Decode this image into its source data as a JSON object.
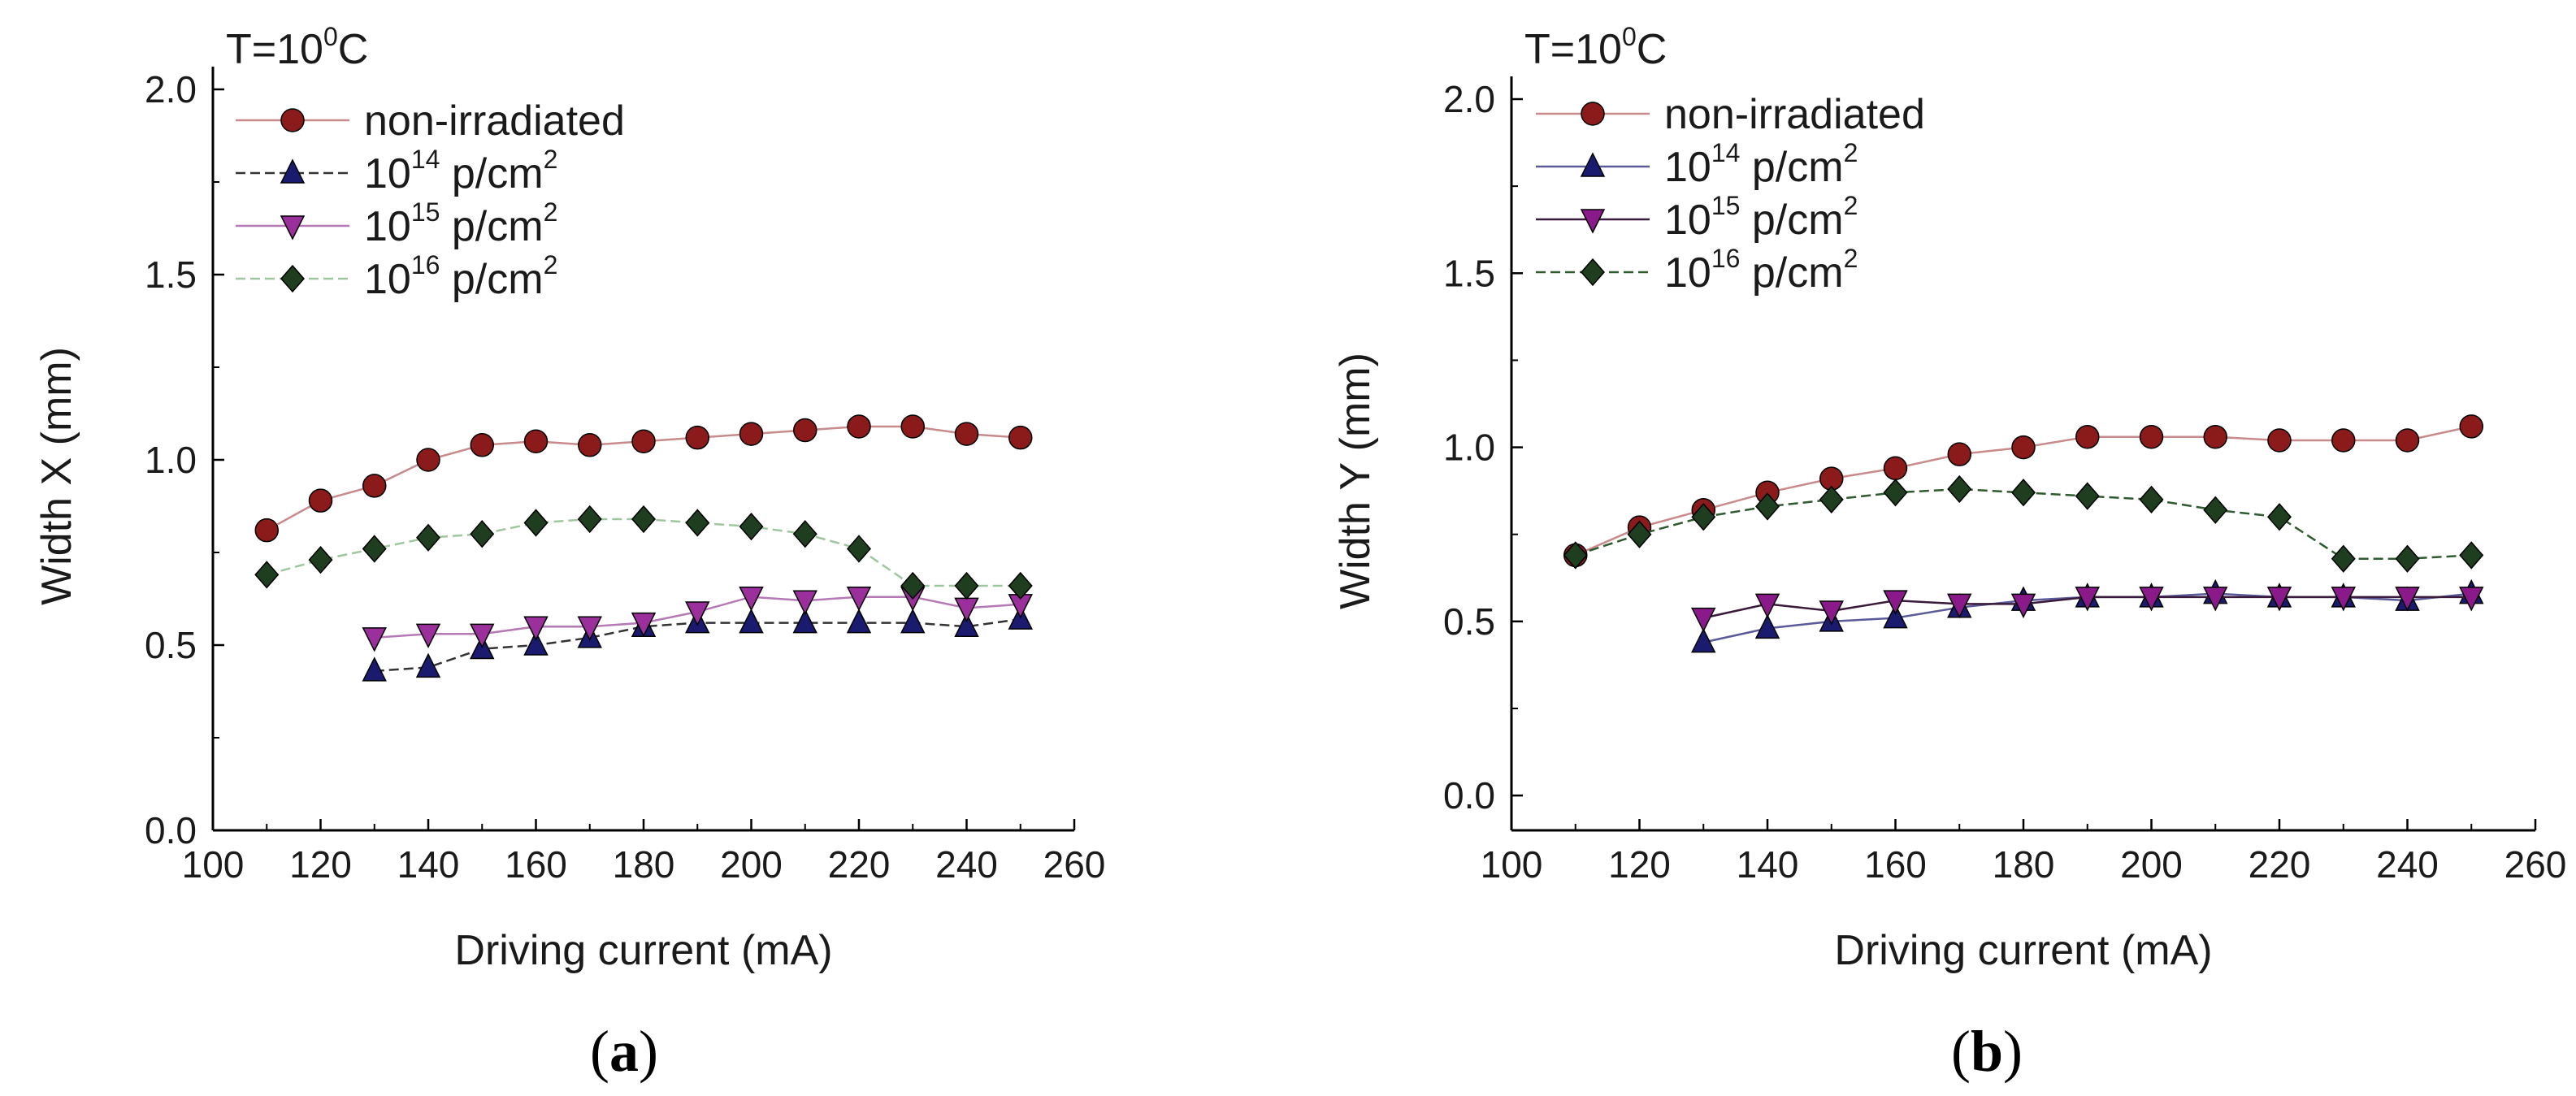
{
  "figure": {
    "panels": [
      {
        "id": "a",
        "caption_open": "(",
        "caption_letter": "a",
        "caption_close": ")",
        "temperature_label": "T=10",
        "temperature_sup": "0",
        "temperature_unit": "C"
      },
      {
        "id": "b",
        "caption_open": "(",
        "caption_letter": "b",
        "caption_close": ")",
        "temperature_label": "T=10",
        "temperature_sup": "0",
        "temperature_unit": "C"
      }
    ]
  },
  "chart_data": [
    {
      "type": "line",
      "title": "",
      "xlabel": "Driving current (mA)",
      "ylabel": "Width X (mm)",
      "xlim": [
        100,
        260
      ],
      "ylim": [
        0.0,
        2.0
      ],
      "xticks": [
        100,
        120,
        140,
        160,
        180,
        200,
        220,
        240,
        260
      ],
      "yticks": [
        "0.0",
        "0.5",
        "1.0",
        "1.5",
        "2.0"
      ],
      "legend_position": "top-left",
      "series": [
        {
          "name": "non-irradiated",
          "legend_base": "non-irradiated",
          "legend_sup": "",
          "legend_tail": "",
          "marker": "circle",
          "color": "#8b1a1a",
          "line_color": "#c88a8a",
          "dashed": false,
          "x": [
            110,
            120,
            130,
            140,
            150,
            160,
            170,
            180,
            190,
            200,
            210,
            220,
            230,
            240,
            250
          ],
          "y": [
            0.81,
            0.89,
            0.93,
            1.0,
            1.04,
            1.05,
            1.04,
            1.05,
            1.06,
            1.07,
            1.08,
            1.09,
            1.09,
            1.07,
            1.06
          ]
        },
        {
          "name": "10^14 p/cm^2",
          "legend_base": "10",
          "legend_sup": "14",
          "legend_tail": " p/cm",
          "legend_tail_sup": "2",
          "marker": "triangle-up",
          "color": "#1a1a6e",
          "line_color": "#333333",
          "dashed": true,
          "x": [
            130,
            140,
            150,
            160,
            170,
            180,
            190,
            200,
            210,
            220,
            230,
            240,
            250
          ],
          "y": [
            0.43,
            0.44,
            0.49,
            0.5,
            0.52,
            0.55,
            0.56,
            0.56,
            0.56,
            0.56,
            0.56,
            0.55,
            0.57
          ]
        },
        {
          "name": "10^15 p/cm^2",
          "legend_base": "10",
          "legend_sup": "15",
          "legend_tail": " p/cm",
          "legend_tail_sup": "2",
          "marker": "triangle-down",
          "color": "#9b2f9b",
          "line_color": "#b57ab5",
          "dashed": false,
          "x": [
            130,
            140,
            150,
            160,
            170,
            180,
            190,
            200,
            210,
            220,
            230,
            240,
            250
          ],
          "y": [
            0.52,
            0.53,
            0.53,
            0.55,
            0.55,
            0.56,
            0.59,
            0.63,
            0.62,
            0.63,
            0.63,
            0.6,
            0.61
          ]
        },
        {
          "name": "10^16 p/cm^2",
          "legend_base": "10",
          "legend_sup": "16",
          "legend_tail": " p/cm",
          "legend_tail_sup": "2",
          "marker": "diamond",
          "color": "#1f3d1f",
          "line_color": "#9fc79f",
          "dashed": true,
          "x": [
            110,
            120,
            130,
            140,
            150,
            160,
            170,
            180,
            190,
            200,
            210,
            220,
            230,
            240,
            250
          ],
          "y": [
            0.69,
            0.73,
            0.76,
            0.79,
            0.8,
            0.83,
            0.84,
            0.84,
            0.83,
            0.82,
            0.8,
            0.76,
            0.66,
            0.66,
            0.66
          ]
        }
      ]
    },
    {
      "type": "line",
      "title": "",
      "xlabel": "Driving current (mA)",
      "ylabel": "Width Y (mm)",
      "xlim": [
        100,
        260
      ],
      "ylim": [
        -0.1,
        2.0
      ],
      "xticks": [
        100,
        120,
        140,
        160,
        180,
        200,
        220,
        240,
        260
      ],
      "yticks": [
        "0.0",
        "0.5",
        "1.0",
        "1.5",
        "2.0"
      ],
      "legend_position": "top-left",
      "series": [
        {
          "name": "non-irradiated",
          "legend_base": "non-irradiated",
          "legend_sup": "",
          "legend_tail": "",
          "marker": "circle",
          "color": "#8b1a1a",
          "line_color": "#c88a8a",
          "dashed": false,
          "x": [
            110,
            120,
            130,
            140,
            150,
            160,
            170,
            180,
            190,
            200,
            210,
            220,
            230,
            240,
            250
          ],
          "y": [
            0.69,
            0.77,
            0.82,
            0.87,
            0.91,
            0.94,
            0.98,
            1.0,
            1.03,
            1.03,
            1.03,
            1.02,
            1.02,
            1.02,
            1.06
          ]
        },
        {
          "name": "10^14 p/cm^2",
          "legend_base": "10",
          "legend_sup": "14",
          "legend_tail": " p/cm",
          "legend_tail_sup": "2",
          "marker": "triangle-up",
          "color": "#1a1a6e",
          "line_color": "#5a5a9a",
          "dashed": false,
          "x": [
            130,
            140,
            150,
            160,
            170,
            180,
            190,
            200,
            210,
            220,
            230,
            240,
            250
          ],
          "y": [
            0.44,
            0.48,
            0.5,
            0.51,
            0.54,
            0.56,
            0.57,
            0.57,
            0.58,
            0.57,
            0.57,
            0.56,
            0.58
          ]
        },
        {
          "name": "10^15 p/cm^2",
          "legend_base": "10",
          "legend_sup": "15",
          "legend_tail": " p/cm",
          "legend_tail_sup": "2",
          "marker": "triangle-down",
          "color": "#8a1a8a",
          "line_color": "#3a1a3a",
          "dashed": false,
          "x": [
            130,
            140,
            150,
            160,
            170,
            180,
            190,
            200,
            210,
            220,
            230,
            240,
            250
          ],
          "y": [
            0.51,
            0.55,
            0.53,
            0.56,
            0.55,
            0.55,
            0.57,
            0.57,
            0.57,
            0.57,
            0.57,
            0.57,
            0.57
          ]
        },
        {
          "name": "10^16 p/cm^2",
          "legend_base": "10",
          "legend_sup": "16",
          "legend_tail": " p/cm",
          "legend_tail_sup": "2",
          "marker": "diamond",
          "color": "#1f3d1f",
          "line_color": "#2f5a2f",
          "dashed": true,
          "x": [
            110,
            120,
            130,
            140,
            150,
            160,
            170,
            180,
            190,
            200,
            210,
            220,
            230,
            240,
            250
          ],
          "y": [
            0.69,
            0.75,
            0.8,
            0.83,
            0.85,
            0.87,
            0.88,
            0.87,
            0.86,
            0.85,
            0.82,
            0.8,
            0.68,
            0.68,
            0.69
          ]
        }
      ]
    }
  ]
}
